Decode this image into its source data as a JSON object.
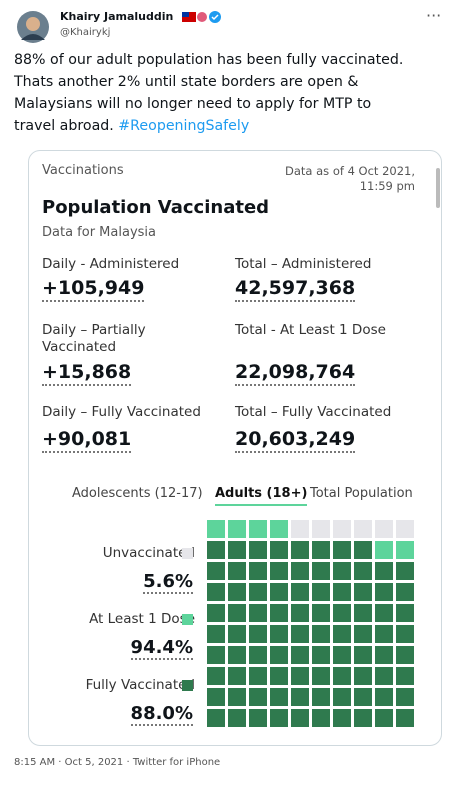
{
  "tweet": {
    "author": {
      "name": "Khairy Jamaluddin",
      "handle": "@Khairykj"
    },
    "text_lines": [
      "88% of our adult population has been fully vaccinated.",
      "Thats another 2% until state borders are open &",
      "Malaysians will no longer need to apply for MTP to",
      "travel abroad."
    ],
    "hashtag": "#ReopeningSafely",
    "footer": "8:15 AM · Oct 5, 2021 · Twitter for iPhone"
  },
  "card": {
    "section": "Vaccinations",
    "as_of": "Data as of 4 Oct 2021, 11:59 pm",
    "title": "Population Vaccinated",
    "subtitle": "Data for Malaysia",
    "stats": [
      {
        "label": "Daily - Administered",
        "value": "+105,949"
      },
      {
        "label": "Total – Administered",
        "value": "42,597,368"
      },
      {
        "label": "Daily – Partially Vaccinated",
        "value": "+15,868"
      },
      {
        "label": "Total - At Least 1 Dose",
        "value": "22,098,764"
      },
      {
        "label": "Daily – Fully Vaccinated",
        "value": "+90,081"
      },
      {
        "label": "Total – Fully Vaccinated",
        "value": "20,603,249"
      }
    ],
    "tabs": [
      "Adolescents (12-17)",
      "Adults (18+)",
      "Total Population"
    ],
    "legend": [
      {
        "label": "Unvaccinated",
        "value": "5.6%",
        "color": "#e6e6ea"
      },
      {
        "label": "At Least 1 Dose",
        "value": "94.4%",
        "color": "#5dd49b"
      },
      {
        "label": "Fully Vaccinated",
        "value": "88.0%",
        "color": "#2f7a4e"
      }
    ]
  }
}
